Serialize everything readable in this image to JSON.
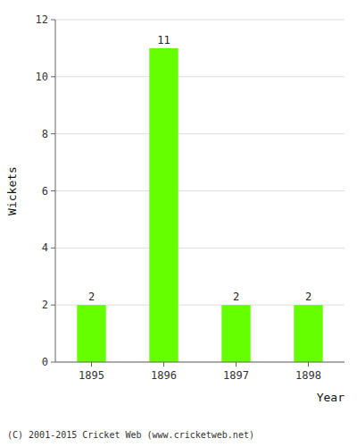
{
  "chart_data": {
    "type": "bar",
    "categories": [
      "1895",
      "1896",
      "1897",
      "1898"
    ],
    "values": [
      2,
      11,
      2,
      2
    ],
    "color": "#66ff00",
    "xlabel": "Year",
    "ylabel": "Wickets",
    "ylim": [
      0,
      12
    ],
    "yticks": [
      0,
      2,
      4,
      6,
      8,
      10,
      12
    ],
    "grid": true,
    "data_labels": true,
    "annotations": [
      "(C) 2001-2015 Cricket Web (www.cricketweb.net)"
    ]
  }
}
